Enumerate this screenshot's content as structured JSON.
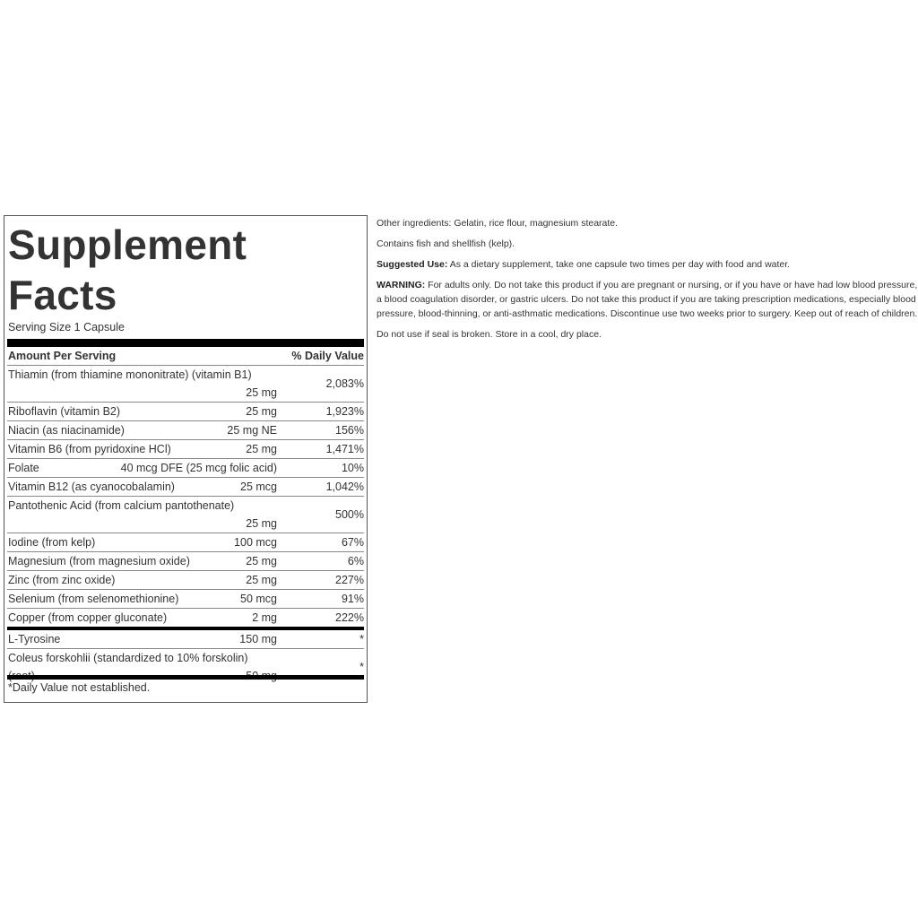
{
  "facts": {
    "title_line1": "Supplement",
    "title_line2": "Facts",
    "serving_size": "Serving Size 1 Capsule",
    "header_amount": "Amount Per Serving",
    "header_dv": "% Daily Value",
    "rows": [
      {
        "name": "Thiamin (from thiamine mononitrate) (vitamin B1)",
        "amount": "25 mg",
        "dv": "2,083%"
      },
      {
        "name": "Riboflavin (vitamin B2)",
        "amount": "25 mg",
        "dv": "1,923%"
      },
      {
        "name": "Niacin (as niacinamide)",
        "amount": "25 mg NE",
        "dv": "156%"
      },
      {
        "name": "Vitamin B6 (from pyridoxine HCl)",
        "amount": "25 mg",
        "dv": "1,471%"
      },
      {
        "name": "Folate",
        "amount": "40 mcg DFE (25 mcg folic acid)",
        "dv": "10%"
      },
      {
        "name": "Vitamin B12 (as cyanocobalamin)",
        "amount": "25 mcg",
        "dv": "1,042%"
      },
      {
        "name": "Pantothenic Acid (from calcium pantothenate)",
        "amount": "25 mg",
        "dv": "500%"
      },
      {
        "name": "Iodine (from kelp)",
        "amount": "100 mcg",
        "dv": "67%"
      },
      {
        "name": "Magnesium (from magnesium oxide)",
        "amount": "25 mg",
        "dv": "6%"
      },
      {
        "name": "Zinc (from zinc oxide)",
        "amount": "25 mg",
        "dv": "227%"
      },
      {
        "name": "Selenium (from selenomethionine)",
        "amount": "50 mcg",
        "dv": "91%"
      },
      {
        "name": "Copper (from copper gluconate)",
        "amount": "2 mg",
        "dv": "222%"
      },
      {
        "name": "L-Tyrosine",
        "amount": "150 mg",
        "dv": "*"
      },
      {
        "name": "Coleus forskohlii (standardized to 10% forskolin) (root)",
        "amount": "50 mg",
        "dv": "*"
      }
    ],
    "footnote": "*Daily Value not established."
  },
  "info": {
    "other_ingredients": "Other ingredients: Gelatin, rice flour, magnesium stearate.",
    "allergens": "Contains fish and shellfish (kelp).",
    "suggested_use_label": "Suggested Use:",
    "suggested_use": " As a dietary supplement, take one capsule two times per day with food and water.",
    "warning_label": "WARNING:",
    "warning": " For adults only. Do not take this product if you are pregnant or nursing, or if you have or have had low blood pressure, a blood coagulation disorder, or gastric ulcers. Do not take this product if you are taking prescription medications, especially blood pressure, blood-thinning, or anti-asthmatic medications. Discontinue use two weeks prior to surgery. Keep out of reach of children.",
    "storage": "Do not use if seal is broken. Store in a cool, dry place."
  }
}
